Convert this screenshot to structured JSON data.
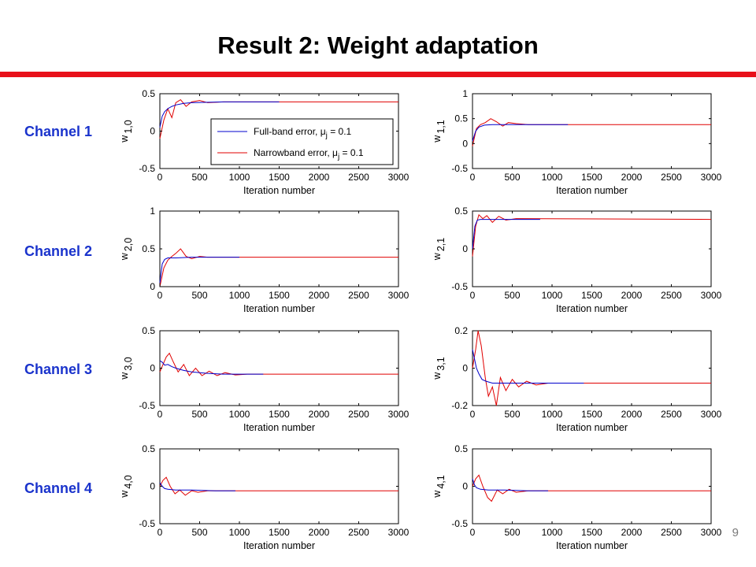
{
  "slide": {
    "title": "Result 2: Weight adaptation",
    "page_number": "9",
    "channels": [
      "Channel 1",
      "Channel 2",
      "Channel 3",
      "Channel 4"
    ]
  },
  "colors": {
    "title_rule": "#e8101a",
    "channel_label": "#1a33cc",
    "full_band": "#0000cc",
    "narrowband": "#e00000"
  },
  "chart_data": [
    {
      "type": "line",
      "weight": "w_1,0",
      "ylabel_main": "w",
      "ylabel_sub": "1,0",
      "xlabel": "Iteration number",
      "xlim": [
        0,
        3000
      ],
      "xticks": [
        0,
        500,
        1000,
        1500,
        2000,
        2500,
        3000
      ],
      "ylim": [
        -0.5,
        0.5
      ],
      "yticks": [
        "-0.5",
        "0",
        "0.5"
      ],
      "legend": {
        "placement": "center-right",
        "entries": [
          {
            "text": "Full-band error,",
            "mu": "μ",
            "sub": "j",
            "rest": " = 0.1"
          },
          {
            "text": "Narrowband error,",
            "mu": "μ",
            "sub": "j",
            "rest": " = 0.1"
          }
        ]
      },
      "series": [
        {
          "name": "Full-band error, μj = 0.1",
          "end_x": 1500,
          "points": [
            [
              0,
              0.05
            ],
            [
              30,
              0.2
            ],
            [
              60,
              0.26
            ],
            [
              100,
              0.3
            ],
            [
              150,
              0.33
            ],
            [
              200,
              0.35
            ],
            [
              300,
              0.37
            ],
            [
              400,
              0.38
            ],
            [
              600,
              0.385
            ],
            [
              800,
              0.39
            ],
            [
              1000,
              0.39
            ],
            [
              1500,
              0.39
            ]
          ]
        },
        {
          "name": "Narrowband error, μj = 0.1",
          "end_x": 3000,
          "points": [
            [
              0,
              -0.1
            ],
            [
              50,
              0.15
            ],
            [
              100,
              0.3
            ],
            [
              150,
              0.18
            ],
            [
              200,
              0.38
            ],
            [
              260,
              0.42
            ],
            [
              330,
              0.33
            ],
            [
              400,
              0.39
            ],
            [
              500,
              0.41
            ],
            [
              600,
              0.38
            ],
            [
              800,
              0.39
            ],
            [
              3000,
              0.39
            ]
          ]
        }
      ]
    },
    {
      "type": "line",
      "weight": "w_1,1",
      "ylabel_main": "w",
      "ylabel_sub": "1,1",
      "xlabel": "Iteration number",
      "xlim": [
        0,
        3000
      ],
      "xticks": [
        0,
        500,
        1000,
        1500,
        2000,
        2500,
        3000
      ],
      "ylim": [
        -0.5,
        1
      ],
      "yticks": [
        "-0.5",
        "0",
        "0.5",
        "1"
      ],
      "series": [
        {
          "name": "Full-band",
          "end_x": 1200,
          "points": [
            [
              0,
              0.05
            ],
            [
              40,
              0.25
            ],
            [
              80,
              0.33
            ],
            [
              150,
              0.37
            ],
            [
              250,
              0.38
            ],
            [
              400,
              0.38
            ],
            [
              700,
              0.38
            ],
            [
              1200,
              0.38
            ]
          ]
        },
        {
          "name": "Narrowband",
          "end_x": 3000,
          "points": [
            [
              0,
              -0.05
            ],
            [
              50,
              0.3
            ],
            [
              100,
              0.38
            ],
            [
              160,
              0.42
            ],
            [
              230,
              0.5
            ],
            [
              300,
              0.44
            ],
            [
              380,
              0.35
            ],
            [
              450,
              0.42
            ],
            [
              550,
              0.4
            ],
            [
              700,
              0.38
            ],
            [
              3000,
              0.38
            ]
          ]
        }
      ]
    },
    {
      "type": "line",
      "weight": "w_2,0",
      "ylabel_main": "w",
      "ylabel_sub": "2,0",
      "xlabel": "Iteration number",
      "xlim": [
        0,
        3000
      ],
      "xticks": [
        0,
        500,
        1000,
        1500,
        2000,
        2500,
        3000
      ],
      "ylim": [
        0,
        1
      ],
      "yticks": [
        "0",
        "0.5",
        "1"
      ],
      "series": [
        {
          "name": "Full-band",
          "end_x": 1000,
          "points": [
            [
              0,
              0.05
            ],
            [
              30,
              0.3
            ],
            [
              60,
              0.36
            ],
            [
              100,
              0.38
            ],
            [
              200,
              0.38
            ],
            [
              400,
              0.39
            ],
            [
              1000,
              0.39
            ]
          ]
        },
        {
          "name": "Narrowband",
          "end_x": 3000,
          "points": [
            [
              0,
              0.0
            ],
            [
              50,
              0.25
            ],
            [
              100,
              0.35
            ],
            [
              150,
              0.4
            ],
            [
              200,
              0.44
            ],
            [
              260,
              0.5
            ],
            [
              330,
              0.4
            ],
            [
              400,
              0.37
            ],
            [
              500,
              0.4
            ],
            [
              600,
              0.39
            ],
            [
              3000,
              0.39
            ]
          ]
        }
      ]
    },
    {
      "type": "line",
      "weight": "w_2,1",
      "ylabel_main": "w",
      "ylabel_sub": "2,1",
      "xlabel": "Iteration number",
      "xlim": [
        0,
        3000
      ],
      "xticks": [
        0,
        500,
        1000,
        1500,
        2000,
        2500,
        3000
      ],
      "ylim": [
        -0.5,
        0.5
      ],
      "yticks": [
        "-0.5",
        "0",
        "0.5"
      ],
      "series": [
        {
          "name": "Full-band",
          "end_x": 850,
          "points": [
            [
              0,
              0.0
            ],
            [
              30,
              0.3
            ],
            [
              60,
              0.38
            ],
            [
              100,
              0.39
            ],
            [
              300,
              0.39
            ],
            [
              600,
              0.39
            ],
            [
              850,
              0.39
            ]
          ]
        },
        {
          "name": "Narrowband",
          "end_x": 3000,
          "points": [
            [
              0,
              -0.1
            ],
            [
              40,
              0.3
            ],
            [
              80,
              0.45
            ],
            [
              130,
              0.4
            ],
            [
              180,
              0.44
            ],
            [
              250,
              0.35
            ],
            [
              330,
              0.43
            ],
            [
              420,
              0.38
            ],
            [
              550,
              0.4
            ],
            [
              3000,
              0.39
            ]
          ]
        }
      ]
    },
    {
      "type": "line",
      "weight": "w_3,0",
      "ylabel_main": "w",
      "ylabel_sub": "3,0",
      "xlabel": "Iteration number",
      "xlim": [
        0,
        3000
      ],
      "xticks": [
        0,
        500,
        1000,
        1500,
        2000,
        2500,
        3000
      ],
      "ylim": [
        -0.5,
        0.5
      ],
      "yticks": [
        "-0.5",
        "0",
        "0.5"
      ],
      "series": [
        {
          "name": "Full-band",
          "end_x": 1300,
          "points": [
            [
              0,
              0.1
            ],
            [
              30,
              0.08
            ],
            [
              60,
              0.04
            ],
            [
              100,
              0.05
            ],
            [
              150,
              0.02
            ],
            [
              200,
              0.0
            ],
            [
              300,
              -0.03
            ],
            [
              400,
              -0.05
            ],
            [
              600,
              -0.07
            ],
            [
              800,
              -0.08
            ],
            [
              1300,
              -0.08
            ]
          ]
        },
        {
          "name": "Narrowband",
          "end_x": 3000,
          "points": [
            [
              0,
              -0.05
            ],
            [
              40,
              0.05
            ],
            [
              80,
              0.15
            ],
            [
              120,
              0.2
            ],
            [
              170,
              0.08
            ],
            [
              230,
              -0.05
            ],
            [
              300,
              0.05
            ],
            [
              370,
              -0.1
            ],
            [
              450,
              0.0
            ],
            [
              530,
              -0.1
            ],
            [
              620,
              -0.04
            ],
            [
              720,
              -0.1
            ],
            [
              820,
              -0.06
            ],
            [
              950,
              -0.09
            ],
            [
              1100,
              -0.08
            ],
            [
              3000,
              -0.08
            ]
          ]
        }
      ]
    },
    {
      "type": "line",
      "weight": "w_3,1",
      "ylabel_main": "w",
      "ylabel_sub": "3,1",
      "xlabel": "Iteration number",
      "xlim": [
        0,
        3000
      ],
      "xticks": [
        0,
        500,
        1000,
        1500,
        2000,
        2500,
        3000
      ],
      "ylim": [
        -0.2,
        0.2
      ],
      "yticks": [
        "-0.2",
        "0",
        "0.2"
      ],
      "series": [
        {
          "name": "Full-band",
          "end_x": 1400,
          "points": [
            [
              0,
              0.1
            ],
            [
              25,
              0.05
            ],
            [
              50,
              0.0
            ],
            [
              80,
              -0.03
            ],
            [
              120,
              -0.06
            ],
            [
              170,
              -0.07
            ],
            [
              250,
              -0.08
            ],
            [
              400,
              -0.08
            ],
            [
              600,
              -0.08
            ],
            [
              900,
              -0.08
            ],
            [
              1400,
              -0.08
            ]
          ]
        },
        {
          "name": "Narrowband",
          "end_x": 3000,
          "points": [
            [
              0,
              0.0
            ],
            [
              40,
              0.1
            ],
            [
              70,
              0.2
            ],
            [
              110,
              0.12
            ],
            [
              160,
              -0.05
            ],
            [
              200,
              -0.15
            ],
            [
              250,
              -0.1
            ],
            [
              300,
              -0.2
            ],
            [
              350,
              -0.05
            ],
            [
              420,
              -0.12
            ],
            [
              500,
              -0.06
            ],
            [
              580,
              -0.1
            ],
            [
              680,
              -0.07
            ],
            [
              800,
              -0.09
            ],
            [
              950,
              -0.08
            ],
            [
              3000,
              -0.08
            ]
          ]
        }
      ]
    },
    {
      "type": "line",
      "weight": "w_4,0",
      "ylabel_main": "w",
      "ylabel_sub": "4,0",
      "xlabel": "Iteration number",
      "xlim": [
        0,
        3000
      ],
      "xticks": [
        0,
        500,
        1000,
        1500,
        2000,
        2500,
        3000
      ],
      "ylim": [
        -0.5,
        0.5
      ],
      "yticks": [
        "-0.5",
        "0",
        "0.5"
      ],
      "series": [
        {
          "name": "Full-band",
          "end_x": 950,
          "points": [
            [
              0,
              0.05
            ],
            [
              30,
              0.0
            ],
            [
              60,
              -0.03
            ],
            [
              100,
              -0.04
            ],
            [
              200,
              -0.05
            ],
            [
              400,
              -0.05
            ],
            [
              700,
              -0.06
            ],
            [
              950,
              -0.06
            ]
          ]
        },
        {
          "name": "Narrowband",
          "end_x": 3000,
          "points": [
            [
              0,
              0.0
            ],
            [
              40,
              0.08
            ],
            [
              80,
              0.12
            ],
            [
              130,
              0.0
            ],
            [
              190,
              -0.1
            ],
            [
              250,
              -0.05
            ],
            [
              320,
              -0.12
            ],
            [
              400,
              -0.06
            ],
            [
              480,
              -0.08
            ],
            [
              600,
              -0.06
            ],
            [
              800,
              -0.06
            ],
            [
              3000,
              -0.06
            ]
          ]
        }
      ]
    },
    {
      "type": "line",
      "weight": "w_4,1",
      "ylabel_main": "w",
      "ylabel_sub": "4,1",
      "xlabel": "Iteration number",
      "xlim": [
        0,
        3000
      ],
      "xticks": [
        0,
        500,
        1000,
        1500,
        2000,
        2500,
        3000
      ],
      "ylim": [
        -0.5,
        0.5
      ],
      "yticks": [
        "-0.5",
        "0",
        "0.5"
      ],
      "series": [
        {
          "name": "Full-band",
          "end_x": 950,
          "points": [
            [
              0,
              0.1
            ],
            [
              25,
              0.02
            ],
            [
              50,
              -0.02
            ],
            [
              100,
              -0.04
            ],
            [
              200,
              -0.05
            ],
            [
              400,
              -0.05
            ],
            [
              700,
              -0.06
            ],
            [
              950,
              -0.06
            ]
          ]
        },
        {
          "name": "Narrowband",
          "end_x": 3000,
          "points": [
            [
              0,
              0.0
            ],
            [
              40,
              0.1
            ],
            [
              80,
              0.15
            ],
            [
              130,
              0.0
            ],
            [
              190,
              -0.15
            ],
            [
              240,
              -0.2
            ],
            [
              310,
              -0.05
            ],
            [
              380,
              -0.1
            ],
            [
              460,
              -0.04
            ],
            [
              550,
              -0.08
            ],
            [
              700,
              -0.06
            ],
            [
              3000,
              -0.06
            ]
          ]
        }
      ]
    }
  ]
}
